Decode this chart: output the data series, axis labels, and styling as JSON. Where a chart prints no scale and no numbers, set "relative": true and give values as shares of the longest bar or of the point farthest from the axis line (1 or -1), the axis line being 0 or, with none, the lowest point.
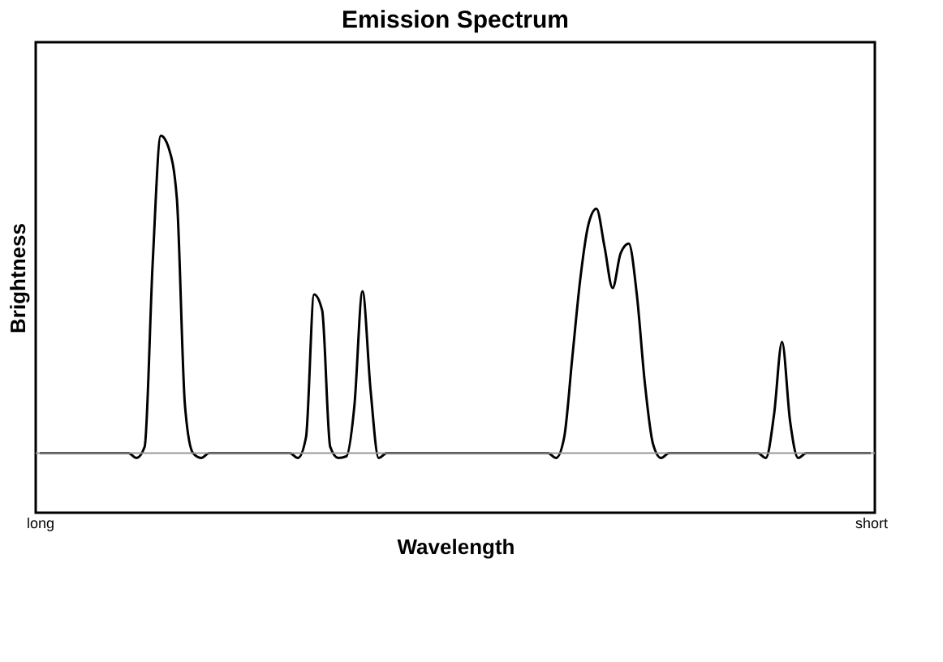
{
  "chart_data": {
    "type": "line",
    "title": "Emission Spectrum",
    "xlabel": "Wavelength",
    "ylabel": "Brightness",
    "relative": true,
    "grid": false,
    "marker": "none",
    "line_style": "solid",
    "categories": [
      "long",
      null,
      null,
      null,
      null,
      null,
      null,
      null,
      null,
      null,
      null,
      null,
      null,
      null,
      null,
      null,
      null,
      null,
      null,
      null,
      null,
      null,
      null,
      null,
      null,
      null,
      null,
      null,
      null,
      null,
      null,
      null,
      null,
      null,
      null,
      null,
      null,
      null,
      null,
      null,
      null,
      null,
      null,
      null,
      null,
      null,
      null,
      null,
      null,
      null,
      null,
      null,
      null,
      null,
      null,
      null,
      null,
      null,
      null,
      null,
      null,
      null,
      null,
      null,
      null,
      null,
      null,
      null,
      null,
      null,
      null,
      null,
      null,
      null,
      null,
      null,
      null,
      null,
      null,
      null,
      null,
      null,
      null,
      null,
      null,
      null,
      null,
      null,
      null,
      null,
      null,
      null,
      null,
      null,
      null,
      null,
      null,
      null,
      null,
      null,
      null,
      null,
      null,
      "short"
    ],
    "series": [
      {
        "color": "#000000",
        "values": [
          0,
          0,
          0,
          0,
          0,
          0,
          0,
          0,
          0,
          0,
          0,
          0,
          -0.015,
          0.02,
          0.6,
          1.0,
          0.96,
          0.8,
          0.15,
          0,
          -0.015,
          0,
          0,
          0,
          0,
          0,
          0,
          0,
          0,
          0,
          0,
          0,
          -0.015,
          0.05,
          0.5,
          0.45,
          0.02,
          -0.015,
          -0.01,
          0.15,
          0.51,
          0.2,
          -0.015,
          0,
          0,
          0,
          0,
          0,
          0,
          0,
          0,
          0,
          0,
          0,
          0,
          0,
          0,
          0,
          0,
          0,
          0,
          0,
          0,
          0,
          -0.015,
          0.05,
          0.3,
          0.55,
          0.72,
          0.77,
          0.65,
          0.52,
          0.63,
          0.66,
          0.5,
          0.22,
          0.03,
          -0.015,
          0,
          0,
          0,
          0,
          0,
          0,
          0,
          0,
          0,
          0,
          0,
          0,
          -0.015,
          0.12,
          0.35,
          0.1,
          -0.015,
          0,
          0,
          0,
          0,
          0,
          0,
          0,
          0,
          0
        ]
      }
    ]
  }
}
